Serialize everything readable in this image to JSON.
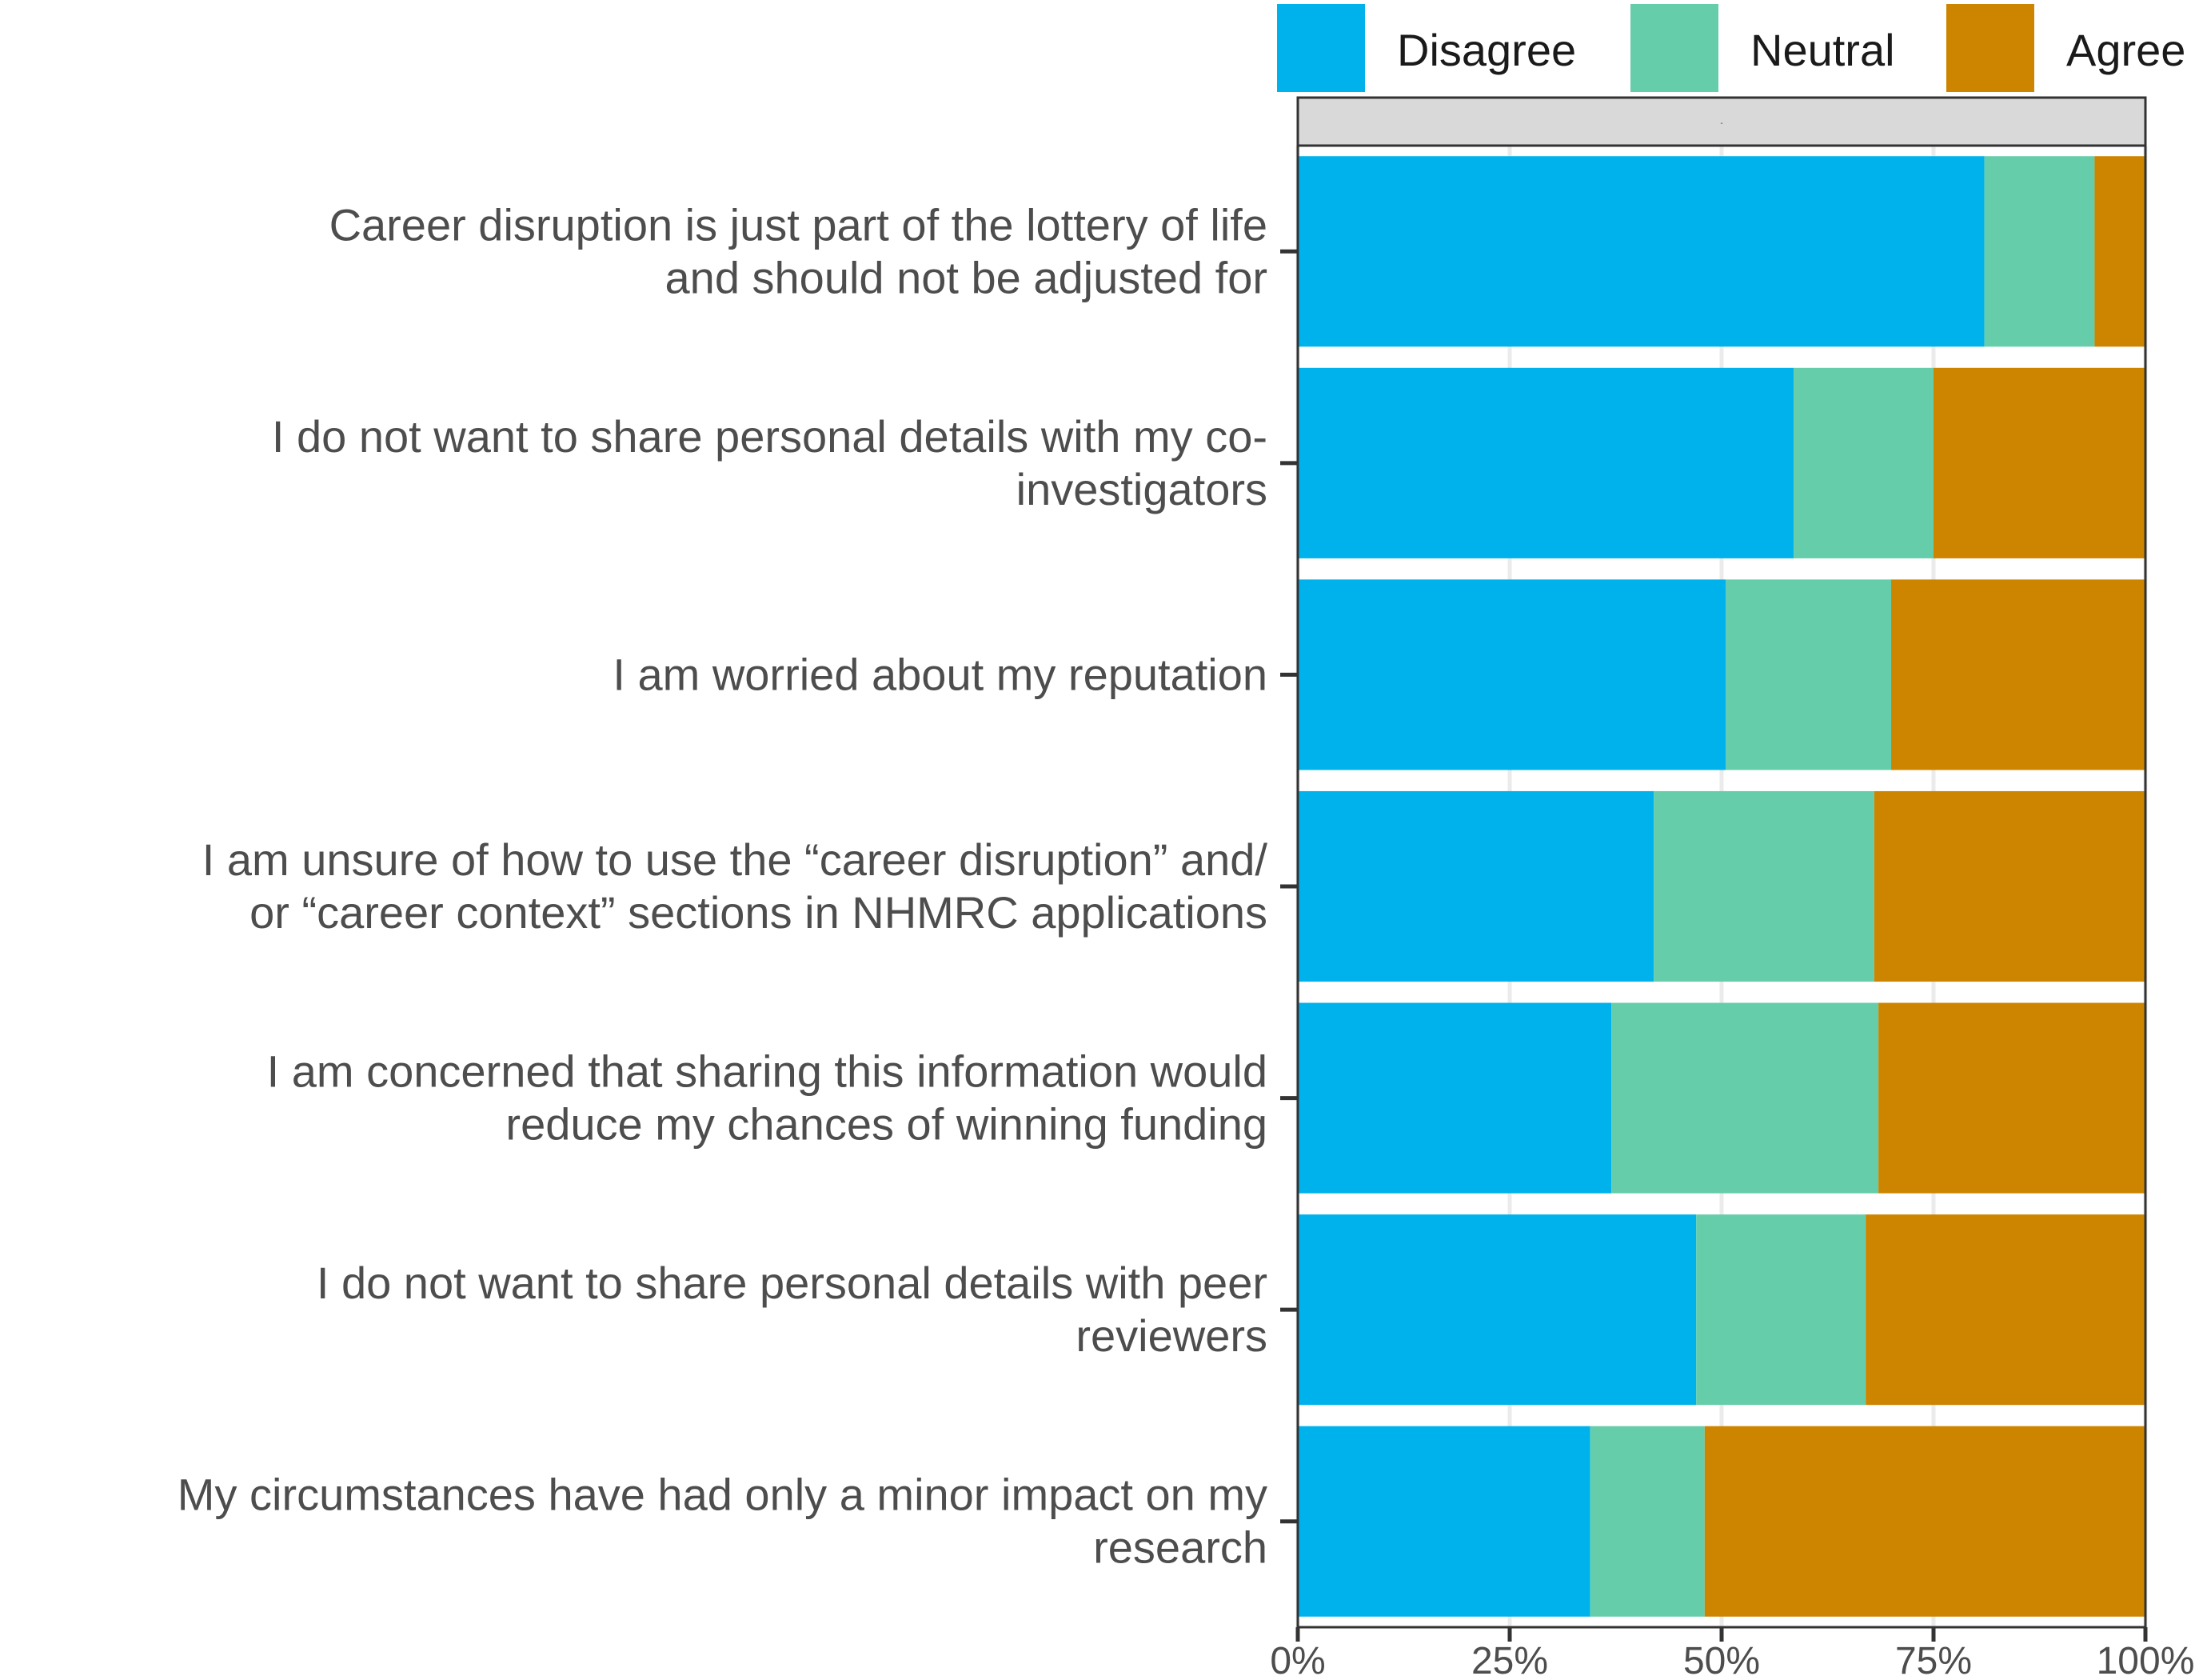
{
  "chart_data": {
    "type": "bar",
    "orientation": "horizontal",
    "stacked": true,
    "categories": [
      [
        "Career disruption is just part of the lottery of life",
        "and should not be adjusted for"
      ],
      [
        "I do not want to share personal details with my co-",
        "investigators"
      ],
      [
        "I am worried about my reputation"
      ],
      [
        "I am unsure of how to use the “career disruption” and/",
        "or “career context” sections in NHMRC applications"
      ],
      [
        "I am concerned that sharing this information would",
        "reduce my chances of winning funding"
      ],
      [
        "I do not want to share personal details with peer",
        "reviewers"
      ],
      [
        "My circumstances have had only a minor impact on my",
        "research"
      ]
    ],
    "series": [
      {
        "name": "Disagree",
        "color": "#00b2ec",
        "values": [
          81,
          58.5,
          50.5,
          42,
          37,
          47,
          34.5
        ]
      },
      {
        "name": "Neutral",
        "color": "#66cdaa",
        "values": [
          13,
          16.5,
          19.5,
          26,
          31.5,
          20,
          13.5
        ]
      },
      {
        "name": "Agree",
        "color": "#cd8500",
        "values": [
          6,
          25,
          30,
          32,
          31.5,
          33,
          52
        ]
      }
    ],
    "xticks": [
      "0%",
      "25%",
      "50%",
      "75%",
      "100%"
    ],
    "xlim": [
      0,
      100
    ],
    "legend_position": "top",
    "facet_strip_label": "-",
    "grid": true
  }
}
